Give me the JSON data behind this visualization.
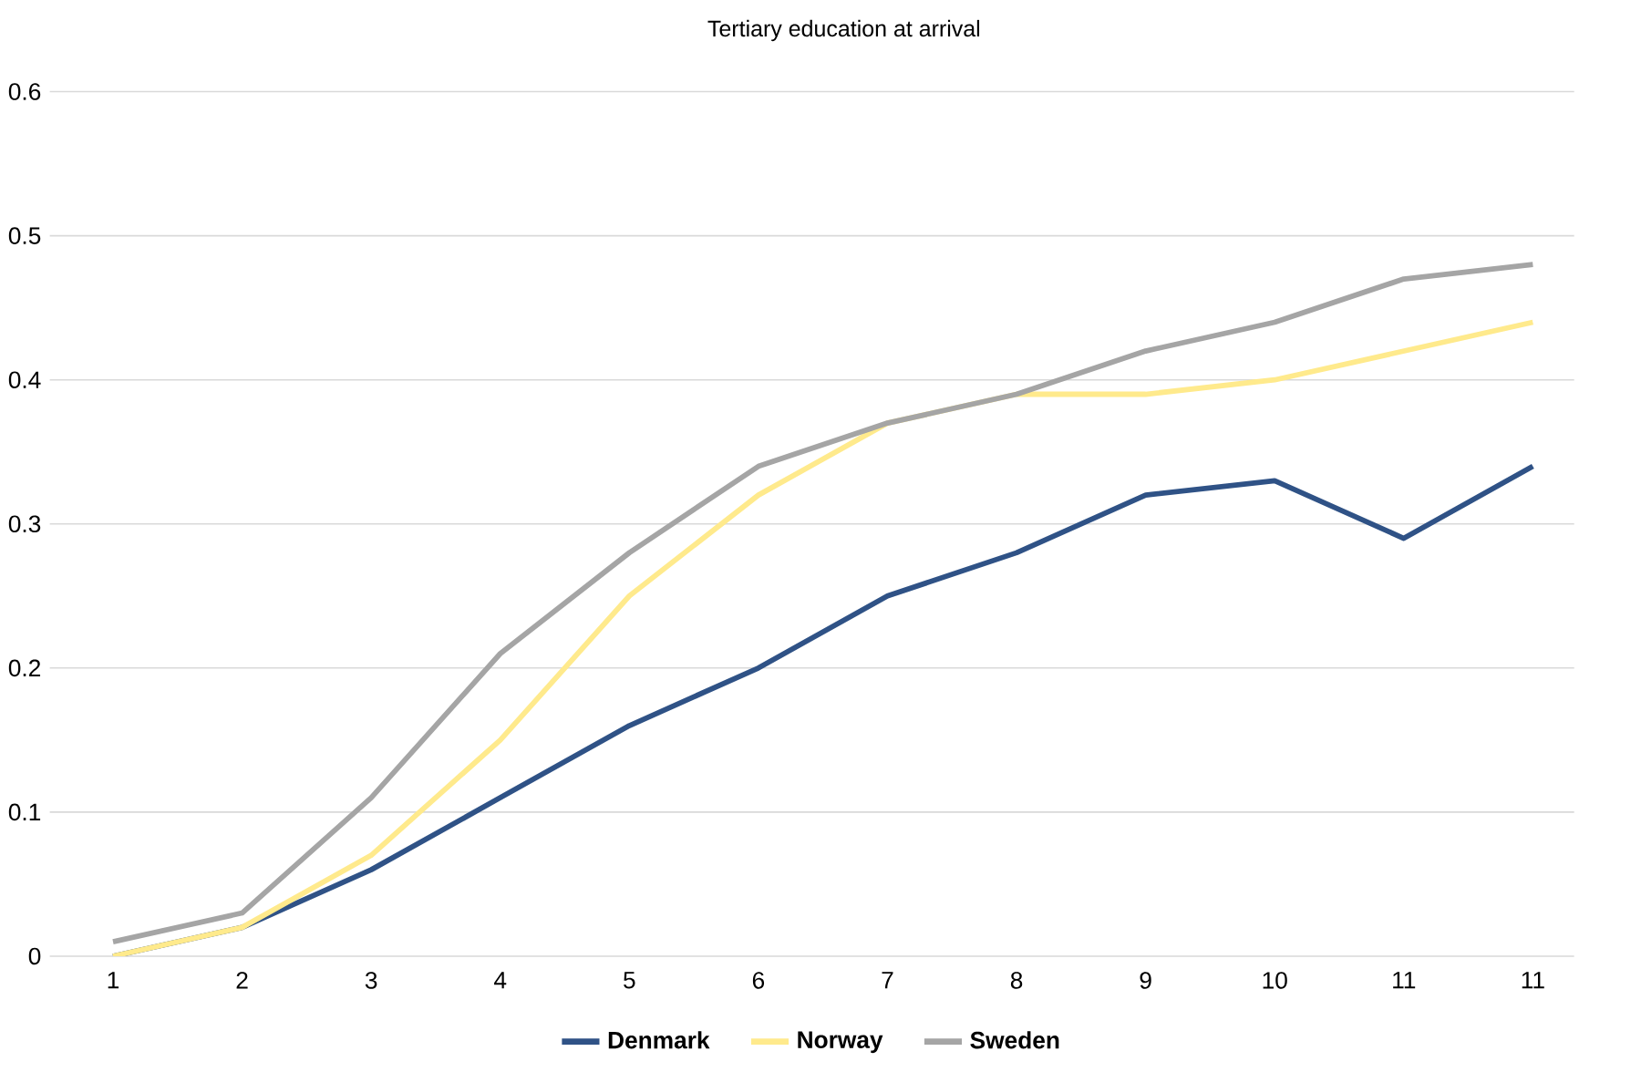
{
  "chart_data": {
    "type": "line",
    "title": "Tertiary education at arrival",
    "categories": [
      "1",
      "2",
      "3",
      "4",
      "5",
      "6",
      "7",
      "8",
      "9",
      "10",
      "11",
      "11"
    ],
    "series": [
      {
        "name": "Denmark",
        "color": "#2f5286",
        "values": [
          0,
          0.02,
          0.06,
          0.11,
          0.16,
          0.2,
          0.25,
          0.28,
          0.32,
          0.33,
          0.29,
          0.34
        ]
      },
      {
        "name": "Norway",
        "color": "#ffea8c",
        "values": [
          0,
          0.02,
          0.07,
          0.15,
          0.25,
          0.32,
          0.37,
          0.39,
          0.39,
          0.4,
          0.42,
          0.44
        ]
      },
      {
        "name": "Sweden",
        "color": "#a5a5a5",
        "values": [
          0.01,
          0.03,
          0.11,
          0.21,
          0.28,
          0.34,
          0.37,
          0.39,
          0.42,
          0.44,
          0.47,
          0.48
        ]
      }
    ],
    "ylim": [
      0,
      0.6
    ],
    "yticks": [
      0,
      0.1,
      0.2,
      0.3,
      0.4,
      0.5,
      0.6
    ],
    "grid": "y",
    "legend": "bottom",
    "line_style": "solid"
  }
}
